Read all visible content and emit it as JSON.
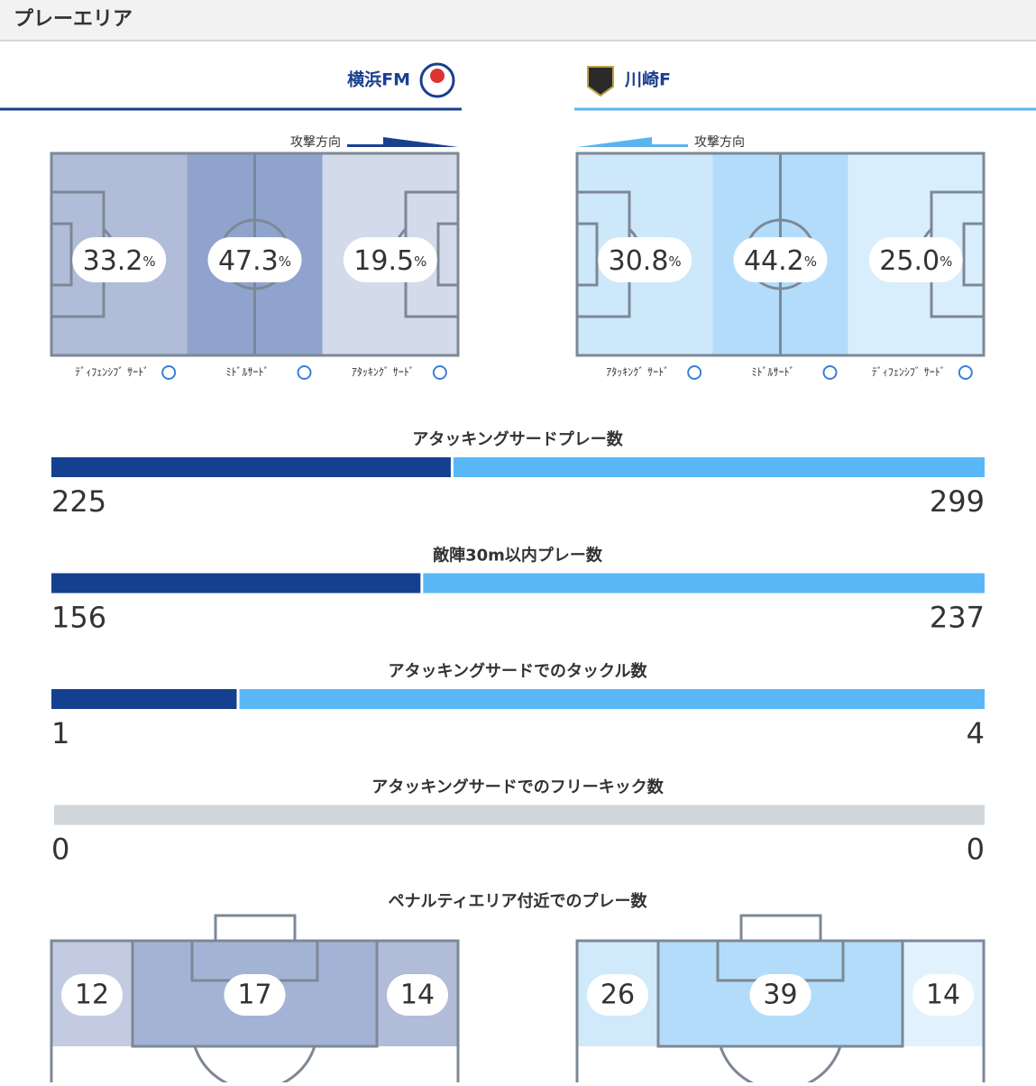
{
  "header": {
    "title": "プレーエリア"
  },
  "teams": {
    "home": "横浜FM",
    "away": "川崎F"
  },
  "direction_label": "攻撃方向",
  "percent_unit": "%",
  "home_zones": [
    {
      "label": "ﾃﾞｨﾌｪﾝｼﾌﾞ ｻｰﾄﾞ",
      "value": "33.2"
    },
    {
      "label": "ﾐﾄﾞﾙｻｰﾄﾞ",
      "value": "47.3"
    },
    {
      "label": "ｱﾀｯｷﾝｸﾞ ｻｰﾄﾞ",
      "value": "19.5"
    }
  ],
  "away_zones": [
    {
      "label": "ｱﾀｯｷﾝｸﾞ ｻｰﾄﾞ",
      "value": "30.8"
    },
    {
      "label": "ﾐﾄﾞﾙｻｰﾄﾞ",
      "value": "44.2"
    },
    {
      "label": "ﾃﾞｨﾌｪﾝｼﾌﾞ ｻｰﾄﾞ",
      "value": "25.0"
    }
  ],
  "comparisons": [
    {
      "title": "アタッキングサードプレー数",
      "home": 225,
      "away": 299
    },
    {
      "title": "敵陣30m以内プレー数",
      "home": 156,
      "away": 237
    },
    {
      "title": "アタッキングサードでのタックル数",
      "home": 1,
      "away": 4
    },
    {
      "title": "アタッキングサードでのフリーキック数",
      "home": 0,
      "away": 0
    }
  ],
  "penalty": {
    "title": "ペナルティエリア付近でのプレー数",
    "home": [
      12,
      17,
      14
    ],
    "away": [
      26,
      39,
      14
    ]
  }
}
